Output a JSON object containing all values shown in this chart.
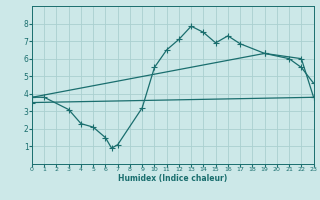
{
  "bg_color": "#cce8e8",
  "grid_color": "#aad0d0",
  "line_color": "#1a6e6e",
  "xlabel": "Humidex (Indice chaleur)",
  "ylim": [
    0,
    9
  ],
  "xlim": [
    0,
    23
  ],
  "yticks": [
    1,
    2,
    3,
    4,
    5,
    6,
    7,
    8
  ],
  "xticks": [
    0,
    1,
    2,
    3,
    4,
    5,
    6,
    7,
    8,
    9,
    10,
    11,
    12,
    13,
    14,
    15,
    16,
    17,
    18,
    19,
    20,
    21,
    22,
    23
  ],
  "line1_x": [
    0,
    1,
    3,
    4,
    5,
    6,
    6.5,
    7,
    9,
    10,
    11,
    12,
    13,
    14,
    15,
    16,
    17,
    19,
    21,
    22,
    23
  ],
  "line1_y": [
    3.8,
    3.8,
    3.1,
    2.3,
    2.1,
    1.5,
    0.9,
    1.1,
    3.2,
    5.5,
    6.5,
    7.1,
    7.85,
    7.5,
    6.9,
    7.3,
    6.85,
    6.3,
    6.0,
    5.5,
    4.6
  ],
  "line2_x": [
    0,
    19,
    22,
    23
  ],
  "line2_y": [
    3.8,
    6.3,
    6.0,
    3.8
  ],
  "line3_x": [
    0,
    23
  ],
  "line3_y": [
    3.5,
    3.8
  ]
}
